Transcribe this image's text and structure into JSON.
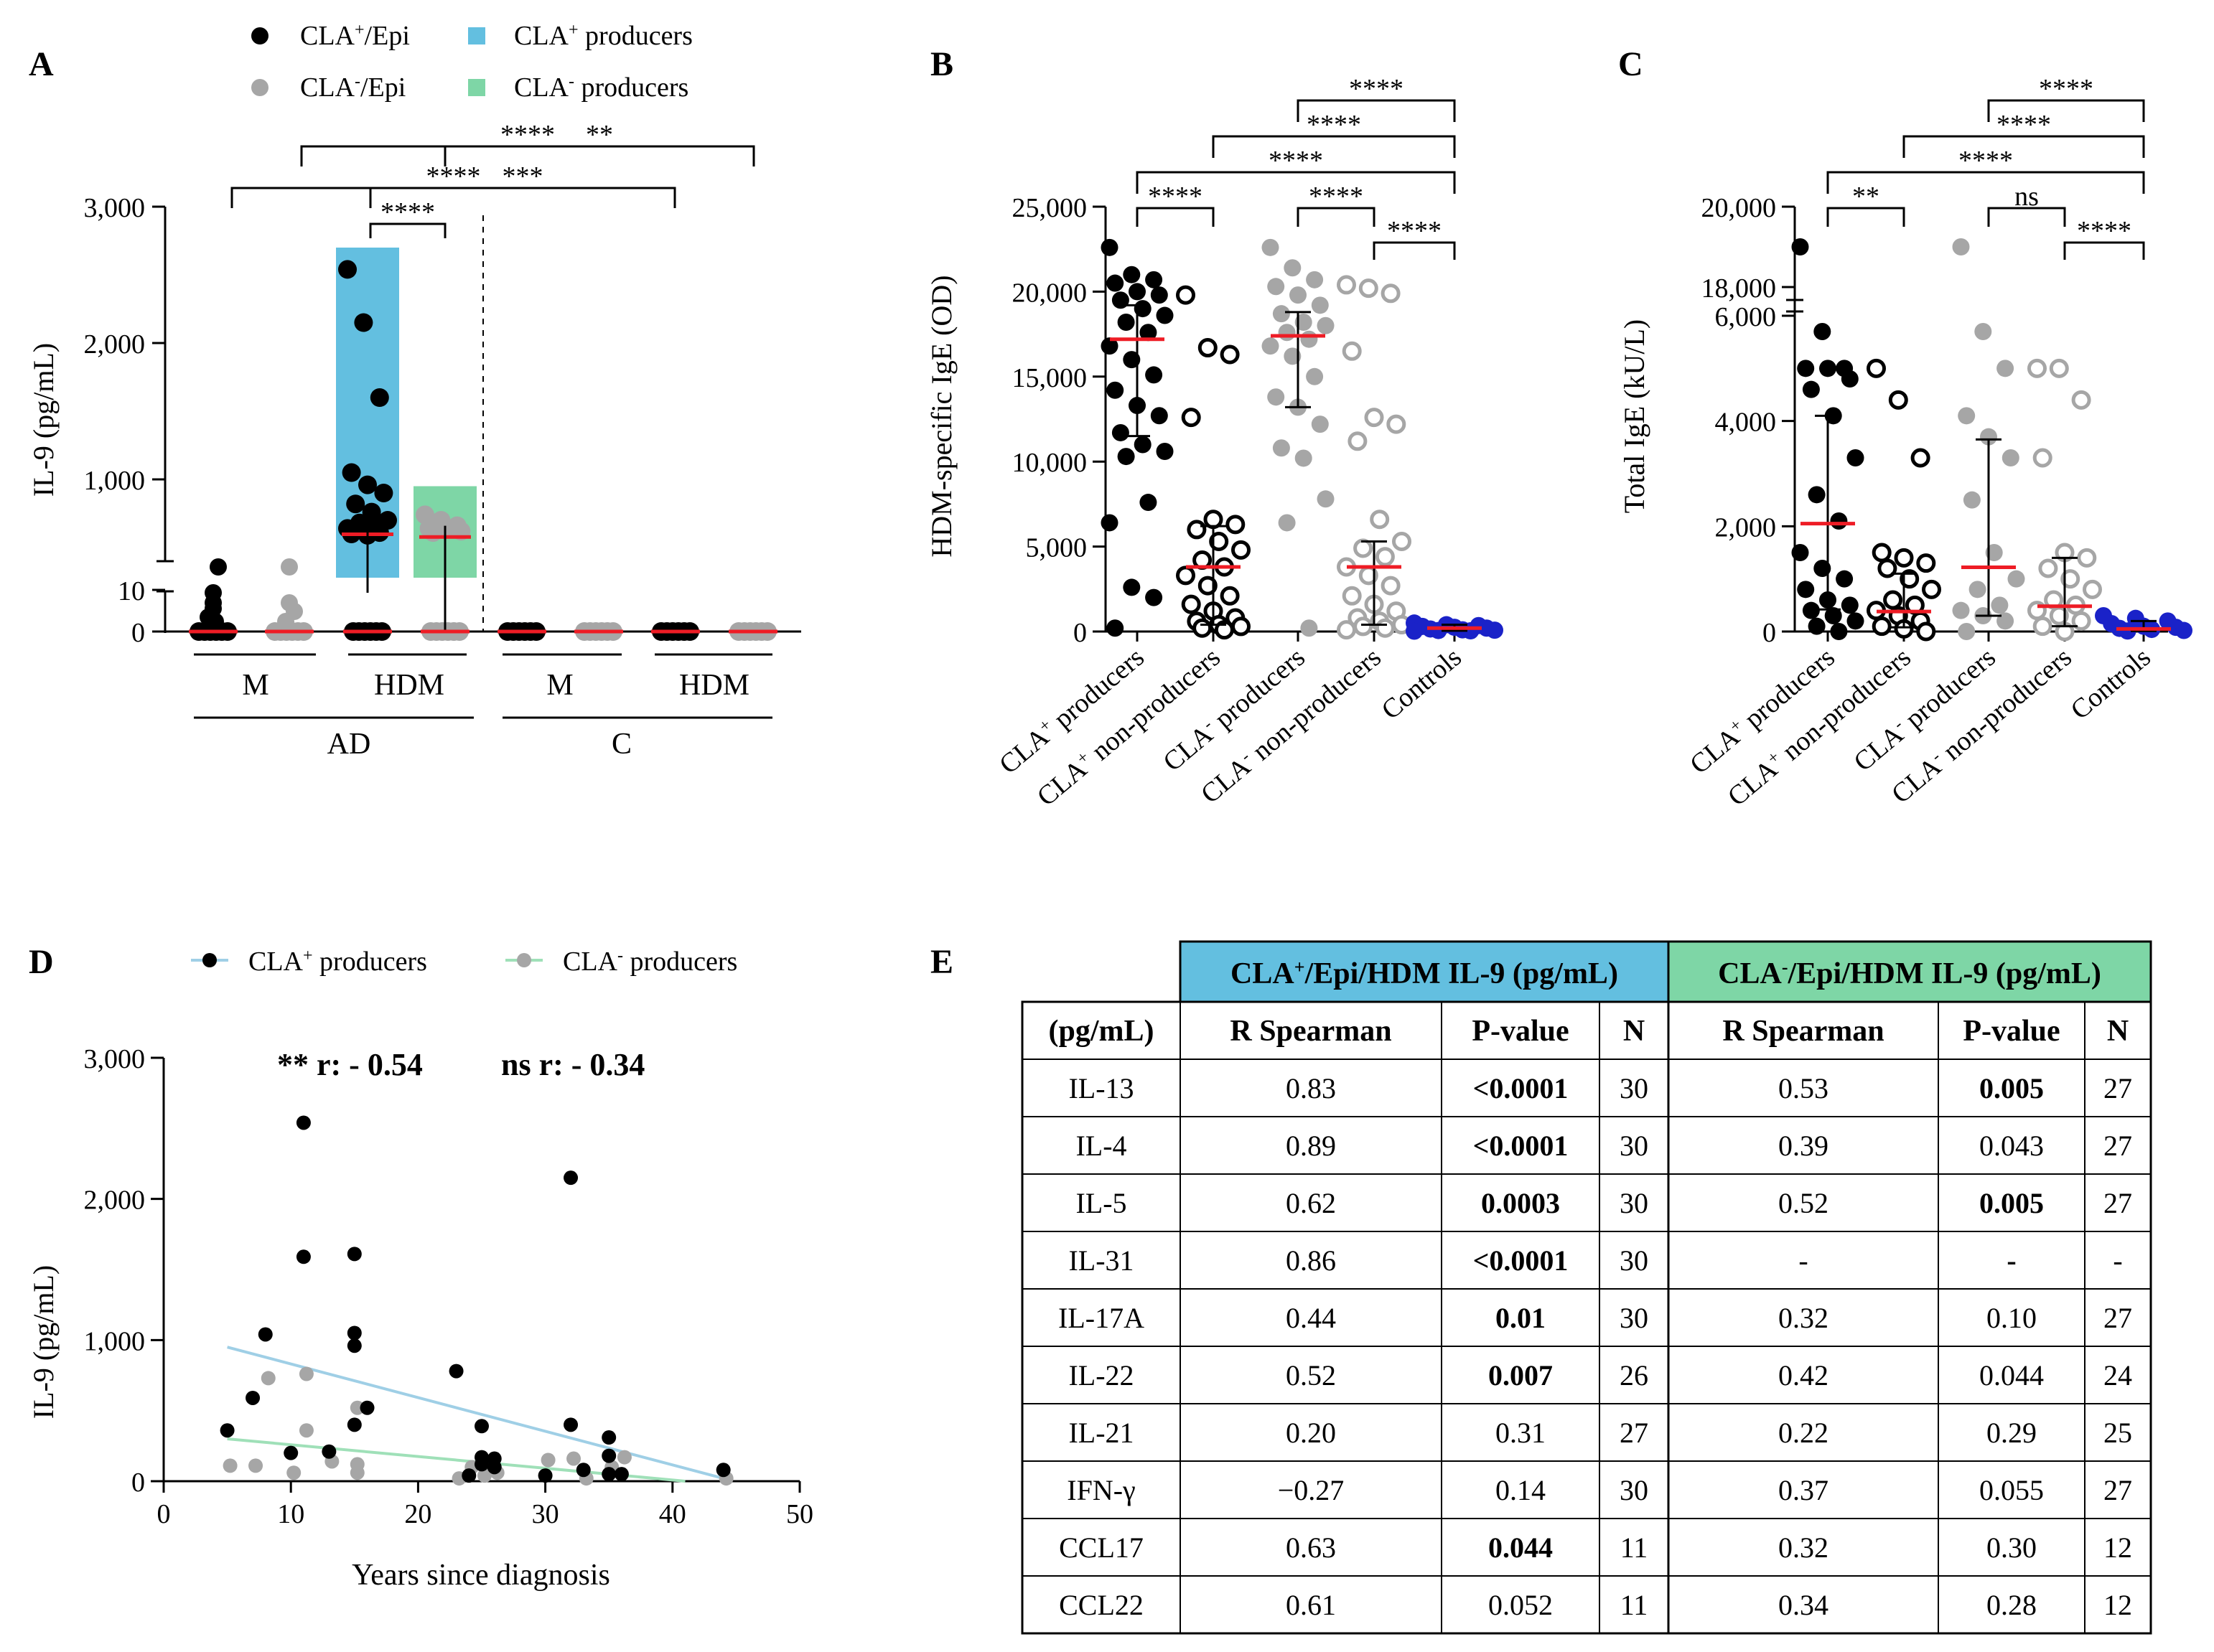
{
  "colors": {
    "cla_pos": "#000000",
    "cla_neg": "#a6a6a6",
    "cla_pos_bar": "#63bfe0",
    "cla_neg_bar": "#7ed6a6",
    "cla_pos_line": "#9fcfe6",
    "cla_neg_line": "#9fe0b8",
    "median": "#ee1c25",
    "controls": "#1a22c8",
    "table_header_pos": "#63bfe0",
    "table_header_neg": "#7ed6a6"
  },
  "chart_data": [
    {
      "id": "A",
      "panel_letter": "A",
      "type": "scatter",
      "title": "",
      "ylabel": "IL-9 (pg/mL)",
      "y_axis_segments": [
        {
          "range": [
            0,
            10
          ],
          "ticks": [
            "0",
            "10"
          ]
        },
        {
          "range": [
            400,
            3000
          ],
          "ticks": [
            "1,000",
            "2,000",
            "3,000"
          ]
        }
      ],
      "legend": [
        {
          "label": "CLA+/Epi",
          "marker": "dot-black"
        },
        {
          "label": "CLA+ producers",
          "marker": "square-blue"
        },
        {
          "label": "CLA-/Epi",
          "marker": "dot-grey"
        },
        {
          "label": "CLA- producers",
          "marker": "square-green"
        }
      ],
      "group_labels": [
        "M",
        "HDM",
        "M",
        "HDM"
      ],
      "super_groups": [
        "AD",
        "C"
      ],
      "producer_bars": [
        {
          "group": "AD HDM CLA+",
          "value": 2700
        },
        {
          "group": "AD HDM CLA-",
          "value": 950
        }
      ],
      "median_values": [
        0,
        0,
        650,
        630,
        0,
        0,
        0,
        0
      ],
      "significance": [
        {
          "comparison": "AD-M CLA+ vs AD-HDM",
          "label": "****"
        },
        {
          "comparison": "AD-HDM vs C-HDM CLA+",
          "label": "***"
        },
        {
          "comparison": "AD-HDM CLA+ vs CLA-",
          "label": "****"
        },
        {
          "comparison": "AD-M CLA- vs AD-HDM",
          "label": "****"
        },
        {
          "comparison": "AD-HDM vs C-HDM CLA-",
          "label": "**"
        }
      ]
    },
    {
      "id": "B",
      "panel_letter": "B",
      "type": "scatter",
      "ylabel": "HDM-specific IgE (OD)",
      "ylim": [
        0,
        25000
      ],
      "yticks": [
        "0",
        "5,000",
        "10,000",
        "15,000",
        "20,000",
        "25,000"
      ],
      "categories": [
        "CLA+ producers",
        "CLA+ non-producers",
        "CLA- producers",
        "CLA- non-producers",
        "Controls"
      ],
      "medians": [
        17200,
        3800,
        17400,
        3800,
        200
      ],
      "iqr": [
        [
          11500,
          19200
        ],
        [
          400,
          6200
        ],
        [
          13200,
          18800
        ],
        [
          400,
          5300
        ],
        [
          50,
          400
        ]
      ],
      "points": [
        [
          22600,
          21000,
          20700,
          20500,
          20000,
          19800,
          19500,
          19000,
          18600,
          18200,
          17600,
          16800,
          16000,
          15100,
          14200,
          13300,
          12700,
          11700,
          11000,
          10600,
          10300,
          7600,
          6400,
          2600,
          2000,
          200
        ],
        [
          19800,
          16700,
          16300,
          12600,
          6600,
          6300,
          6000,
          5300,
          4800,
          4200,
          3800,
          3300,
          2700,
          2100,
          1600,
          1200,
          800,
          600,
          400,
          300,
          200,
          100
        ],
        [
          22600,
          21400,
          20700,
          20300,
          19800,
          19200,
          18700,
          18200,
          18000,
          17600,
          17200,
          16800,
          16200,
          15000,
          13800,
          13200,
          12200,
          10800,
          10200,
          7800,
          6400,
          200
        ],
        [
          20400,
          20200,
          19900,
          16500,
          12600,
          12200,
          11200,
          6600,
          5300,
          4900,
          4400,
          3800,
          3300,
          2700,
          2100,
          1600,
          1200,
          800,
          600,
          400,
          300,
          200,
          100
        ],
        [
          500,
          400,
          350,
          300,
          250,
          200,
          150,
          100,
          80,
          60,
          40,
          20
        ]
      ],
      "significance": [
        {
          "comparison": "CLA+ producers vs CLA+ non-producers",
          "label": "****"
        },
        {
          "comparison": "CLA- producers vs CLA- non-producers",
          "label": "****"
        },
        {
          "comparison": "CLA- non-producers vs Controls",
          "label": "****"
        },
        {
          "comparison": "CLA+ producers vs Controls",
          "label": "****"
        },
        {
          "comparison": "CLA+ non-producers vs Controls",
          "label": "****"
        },
        {
          "comparison": "CLA- producers vs Controls",
          "label": "****"
        }
      ]
    },
    {
      "id": "C",
      "panel_letter": "C",
      "type": "scatter",
      "ylabel": "Total IgE (kU/L)",
      "ylim": [
        0,
        20000
      ],
      "axis_break": [
        6000,
        18000
      ],
      "yticks": [
        "0",
        "2,000",
        "4,000",
        "6,000",
        "18,000",
        "20,000"
      ],
      "categories": [
        "CLA+ producers",
        "CLA+ non-producers",
        "CLA- producers",
        "CLA- non-producers",
        "Controls"
      ],
      "medians": [
        2050,
        380,
        1220,
        480,
        50
      ],
      "iqr": [
        [
          420,
          4100
        ],
        [
          80,
          1100
        ],
        [
          300,
          3650
        ],
        [
          100,
          1400
        ],
        [
          10,
          200
        ]
      ],
      "points": [
        [
          19000,
          5700,
          5000,
          5000,
          5000,
          4800,
          4600,
          4100,
          3300,
          2600,
          2100,
          1500,
          1200,
          1000,
          800,
          600,
          500,
          400,
          300,
          200,
          100,
          0
        ],
        [
          5000,
          4400,
          3300,
          1500,
          1400,
          1300,
          1200,
          1000,
          800,
          600,
          500,
          400,
          300,
          200,
          100,
          50,
          0
        ],
        [
          19000,
          5700,
          5000,
          4100,
          3700,
          3300,
          2500,
          1500,
          1000,
          800,
          500,
          400,
          300,
          200,
          0
        ],
        [
          5000,
          5000,
          4400,
          3300,
          1500,
          1400,
          1200,
          1000,
          800,
          600,
          500,
          400,
          300,
          200,
          100,
          0
        ],
        [
          300,
          250,
          200,
          150,
          100,
          80,
          60,
          40,
          20,
          10
        ]
      ],
      "significance": [
        {
          "comparison": "CLA+ producers vs CLA+ non-producers",
          "label": "**"
        },
        {
          "comparison": "CLA- producers vs CLA- non-producers",
          "label": "ns"
        },
        {
          "comparison": "CLA- non-producers vs Controls",
          "label": "****"
        },
        {
          "comparison": "CLA+ producers vs Controls",
          "label": "****"
        },
        {
          "comparison": "CLA+ non-producers vs Controls",
          "label": "****"
        },
        {
          "comparison": "CLA- producers vs Controls",
          "label": "****"
        }
      ]
    },
    {
      "id": "D",
      "panel_letter": "D",
      "type": "scatter",
      "xlabel": "Years since diagnosis",
      "ylabel": "IL-9 (pg/mL)",
      "xlim": [
        0,
        50
      ],
      "ylim": [
        0,
        3000
      ],
      "xticks": [
        "0",
        "10",
        "20",
        "30",
        "40",
        "50"
      ],
      "yticks": [
        "0",
        "1,000",
        "2,000",
        "3,000"
      ],
      "legend": [
        {
          "label": "CLA+ producers",
          "marker": "dot-black"
        },
        {
          "label": "CLA- producers",
          "marker": "dot-grey"
        }
      ],
      "annotations": [
        {
          "label": "** r: - 0.54",
          "color": "cla_pos_line"
        },
        {
          "label": "ns r: - 0.34",
          "color": "cla_neg_line"
        }
      ],
      "series": [
        {
          "name": "CLA+ producers",
          "points": [
            [
              5,
              360
            ],
            [
              7,
              590
            ],
            [
              8,
              1040
            ],
            [
              10,
              200
            ],
            [
              11,
              2540
            ],
            [
              11,
              1590
            ],
            [
              13,
              210
            ],
            [
              15,
              1610
            ],
            [
              15,
              1050
            ],
            [
              15,
              960
            ],
            [
              15,
              400
            ],
            [
              16,
              520
            ],
            [
              23,
              780
            ],
            [
              24,
              40
            ],
            [
              25,
              120
            ],
            [
              25,
              390
            ],
            [
              25,
              170
            ],
            [
              26,
              160
            ],
            [
              26,
              100
            ],
            [
              30,
              40
            ],
            [
              32,
              2150
            ],
            [
              32,
              400
            ],
            [
              33,
              80
            ],
            [
              35,
              310
            ],
            [
              35,
              180
            ],
            [
              35,
              50
            ],
            [
              36,
              50
            ],
            [
              44,
              80
            ]
          ],
          "fit": [
            [
              5,
              950
            ],
            [
              44,
              20
            ]
          ]
        },
        {
          "name": "CLA- producers",
          "points": [
            [
              5,
              110
            ],
            [
              7,
              110
            ],
            [
              8,
              730
            ],
            [
              10,
              60
            ],
            [
              11,
              760
            ],
            [
              11,
              360
            ],
            [
              13,
              140
            ],
            [
              15,
              520
            ],
            [
              15,
              120
            ],
            [
              15,
              60
            ],
            [
              23,
              20
            ],
            [
              24,
              100
            ],
            [
              25,
              40
            ],
            [
              26,
              60
            ],
            [
              30,
              150
            ],
            [
              32,
              160
            ],
            [
              33,
              20
            ],
            [
              35,
              100
            ],
            [
              36,
              170
            ],
            [
              44,
              20
            ]
          ],
          "fit": [
            [
              5,
              300
            ],
            [
              41,
              0
            ]
          ]
        }
      ]
    }
  ],
  "panel_e": {
    "letter": "E",
    "group_headers": [
      "CLA+/Epi/HDM IL-9 (pg/mL)",
      "CLA-/Epi/HDM IL-9 (pg/mL)"
    ],
    "columns": [
      "(pg/mL)",
      "R Spearman",
      "P-value",
      "N",
      "R  Spearman",
      "P-value",
      "N"
    ],
    "rows": [
      {
        "name": "IL-13",
        "r1": "0.83",
        "p1": "<0.0001",
        "p1_bold": true,
        "n1": "30",
        "r2": "0.53",
        "p2": "0.005",
        "p2_bold": true,
        "n2": "27"
      },
      {
        "name": "IL-4",
        "r1": "0.89",
        "p1": "<0.0001",
        "p1_bold": true,
        "n1": "30",
        "r2": "0.39",
        "p2": "0.043",
        "p2_bold": false,
        "n2": "27"
      },
      {
        "name": "IL-5",
        "r1": "0.62",
        "p1": "0.0003",
        "p1_bold": true,
        "n1": "30",
        "r2": "0.52",
        "p2": "0.005",
        "p2_bold": true,
        "n2": "27"
      },
      {
        "name": "IL-31",
        "r1": "0.86",
        "p1": "<0.0001",
        "p1_bold": true,
        "n1": "30",
        "r2": "-",
        "p2": "-",
        "p2_bold": true,
        "n2": "-"
      },
      {
        "name": "IL-17A",
        "r1": "0.44",
        "p1": "0.01",
        "p1_bold": true,
        "n1": "30",
        "r2": "0.32",
        "p2": "0.10",
        "p2_bold": false,
        "n2": "27"
      },
      {
        "name": "IL-22",
        "r1": "0.52",
        "p1": "0.007",
        "p1_bold": true,
        "n1": "26",
        "r2": "0.42",
        "p2": "0.044",
        "p2_bold": false,
        "n2": "24"
      },
      {
        "name": "IL-21",
        "r1": "0.20",
        "p1": "0.31",
        "p1_bold": false,
        "n1": "27",
        "r2": "0.22",
        "p2": "0.29",
        "p2_bold": false,
        "n2": "25"
      },
      {
        "name": "IFN-γ",
        "r1": "−0.27",
        "p1": "0.14",
        "p1_bold": false,
        "n1": "30",
        "r2": "0.37",
        "p2": "0.055",
        "p2_bold": false,
        "n2": "27"
      },
      {
        "name": "CCL17",
        "r1": "0.63",
        "p1": "0.044",
        "p1_bold": true,
        "n1": "11",
        "r2": "0.32",
        "p2": "0.30",
        "p2_bold": false,
        "n2": "12"
      },
      {
        "name": "CCL22",
        "r1": "0.61",
        "p1": "0.052",
        "p1_bold": false,
        "n1": "11",
        "r2": "0.34",
        "p2": "0.28",
        "p2_bold": false,
        "n2": "12"
      }
    ]
  }
}
